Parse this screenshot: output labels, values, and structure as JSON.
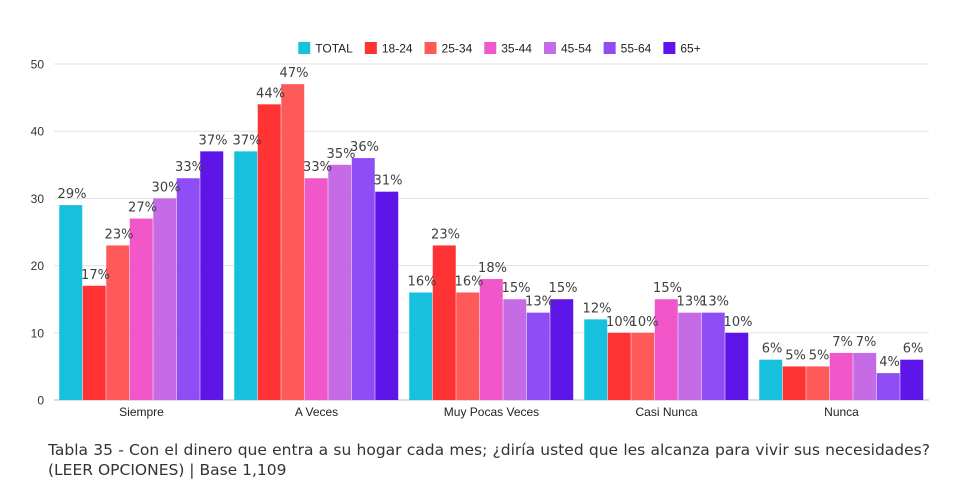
{
  "chart_data": {
    "type": "bar",
    "categories": [
      "Siempre",
      "A Veces",
      "Muy Pocas Veces",
      "Casi Nunca",
      "Nunca"
    ],
    "series": [
      {
        "name": "TOTAL",
        "color": "#17C1DD",
        "values": [
          29,
          37,
          16,
          12,
          6
        ],
        "labels": [
          "29%",
          "37%",
          "16%",
          "12%",
          "6%"
        ]
      },
      {
        "name": "18-24",
        "color": "#FF3333",
        "values": [
          17,
          44,
          23,
          10,
          5
        ],
        "labels": [
          "17%",
          "44%",
          "23%",
          "10%",
          "5%"
        ]
      },
      {
        "name": "25-34",
        "color": "#FF5A5A",
        "values": [
          23,
          47,
          16,
          10,
          5
        ],
        "labels": [
          "23%",
          "47%",
          "16%",
          "10%",
          "5%"
        ]
      },
      {
        "name": "35-44",
        "color": "#F157C9",
        "values": [
          27,
          33,
          18,
          15,
          7
        ],
        "labels": [
          "27%",
          "33%",
          "18%",
          "15%",
          "7%"
        ]
      },
      {
        "name": "45-54",
        "color": "#C66BE6",
        "values": [
          30,
          35,
          15,
          13,
          7
        ],
        "labels": [
          "30%",
          "35%",
          "15%",
          "13%",
          "7%"
        ]
      },
      {
        "name": "55-64",
        "color": "#8E4DF5",
        "values": [
          33,
          36,
          13,
          13,
          4
        ],
        "labels": [
          "33%",
          "36%",
          "13%",
          "13%",
          "4%"
        ]
      },
      {
        "name": "65+",
        "color": "#5E16E8",
        "values": [
          37,
          31,
          15,
          10,
          6
        ],
        "labels": [
          "37%",
          "31%",
          "15%",
          "10%",
          "6%"
        ]
      }
    ],
    "y_ticks": [
      "0",
      "10",
      "20",
      "30",
      "40",
      "50"
    ],
    "ylim": [
      0,
      50
    ],
    "legend_position": "top-center",
    "grid": true,
    "title": "",
    "xlabel": "",
    "ylabel": ""
  },
  "caption": "Tabla 35 - Con el dinero que entra a su hogar cada mes; ¿diría usted que les alcanza para vivir sus necesidades? (LEER OPCIONES) | Base 1,109"
}
